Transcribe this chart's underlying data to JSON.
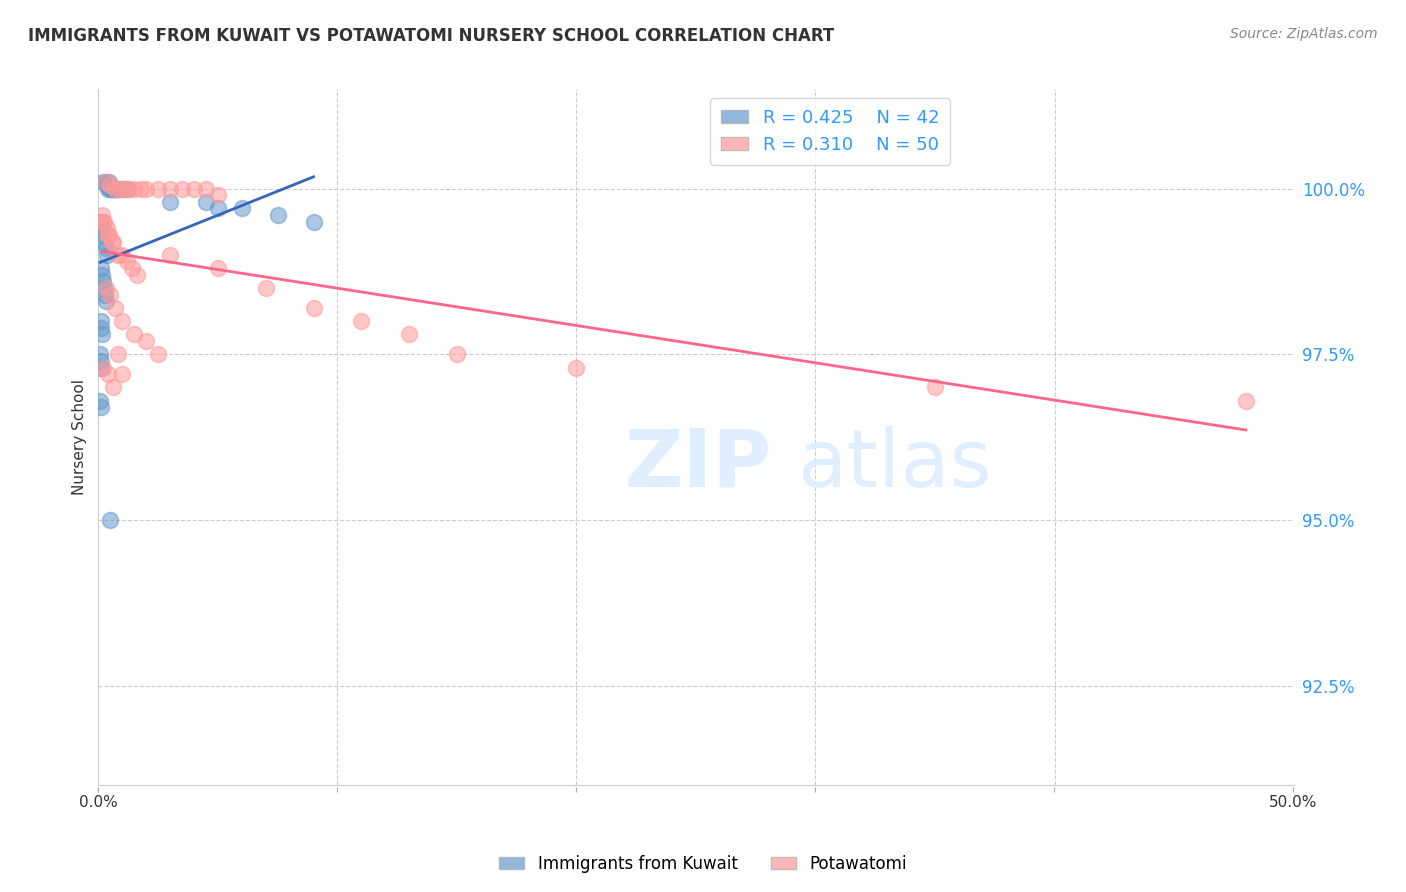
{
  "title": "IMMIGRANTS FROM KUWAIT VS POTAWATOMI NURSERY SCHOOL CORRELATION CHART",
  "source": "Source: ZipAtlas.com",
  "ylabel": "Nursery School",
  "y_ticks": [
    92.5,
    95.0,
    97.5,
    100.0
  ],
  "y_tick_labels": [
    "92.5%",
    "95.0%",
    "97.5%",
    "100.0%"
  ],
  "xlim": [
    0.0,
    50.0
  ],
  "ylim": [
    91.0,
    101.5
  ],
  "legend_r1": "R = 0.425",
  "legend_n1": "N = 42",
  "legend_r2": "R = 0.310",
  "legend_n2": "N = 50",
  "blue_color": "#6699CC",
  "pink_color": "#FF9999",
  "blue_line_color": "#3366BB",
  "pink_line_color": "#FF6688",
  "blue_points_x": [
    0.2,
    0.3,
    0.35,
    0.4,
    0.42,
    0.45,
    0.5,
    0.55,
    0.6,
    0.65,
    0.7,
    0.75,
    0.8,
    1.0,
    1.2,
    0.1,
    0.15,
    0.2,
    0.25,
    0.3,
    0.35,
    0.1,
    0.15,
    0.18,
    0.22,
    0.28,
    0.32,
    0.1,
    0.12,
    0.14,
    0.08,
    0.1,
    0.12,
    0.08,
    0.1,
    3.0,
    4.5,
    5.0,
    6.0,
    7.5,
    9.0,
    0.5
  ],
  "blue_points_y": [
    100.1,
    100.1,
    100.05,
    100.0,
    100.05,
    100.1,
    100.0,
    100.0,
    100.0,
    100.0,
    100.0,
    100.0,
    100.0,
    100.0,
    100.0,
    99.5,
    99.4,
    99.3,
    99.2,
    99.1,
    99.0,
    98.8,
    98.7,
    98.6,
    98.5,
    98.4,
    98.3,
    98.0,
    97.9,
    97.8,
    97.5,
    97.4,
    97.3,
    96.8,
    96.7,
    99.8,
    99.8,
    99.7,
    99.7,
    99.6,
    99.5,
    95.0
  ],
  "pink_points_x": [
    0.3,
    0.5,
    0.7,
    0.9,
    1.1,
    1.3,
    1.5,
    1.8,
    2.0,
    2.5,
    3.0,
    3.5,
    4.0,
    4.5,
    5.0,
    0.2,
    0.4,
    0.6,
    0.8,
    1.0,
    1.2,
    1.4,
    1.6,
    0.3,
    0.5,
    0.7,
    1.0,
    1.5,
    2.0,
    2.5,
    0.2,
    0.4,
    0.6,
    0.8,
    1.0,
    0.15,
    0.25,
    0.35,
    0.45,
    0.55,
    3.0,
    5.0,
    7.0,
    9.0,
    11.0,
    13.0,
    15.0,
    20.0,
    35.0,
    48.0
  ],
  "pink_points_y": [
    100.1,
    100.05,
    100.0,
    100.0,
    100.0,
    100.0,
    100.0,
    100.0,
    100.0,
    100.0,
    100.0,
    100.0,
    100.0,
    100.0,
    99.9,
    99.5,
    99.3,
    99.2,
    99.0,
    99.0,
    98.9,
    98.8,
    98.7,
    98.5,
    98.4,
    98.2,
    98.0,
    97.8,
    97.7,
    97.5,
    97.3,
    97.2,
    97.0,
    97.5,
    97.2,
    99.6,
    99.5,
    99.4,
    99.3,
    99.2,
    99.0,
    98.8,
    98.5,
    98.2,
    98.0,
    97.8,
    97.5,
    97.3,
    97.0,
    96.8
  ]
}
